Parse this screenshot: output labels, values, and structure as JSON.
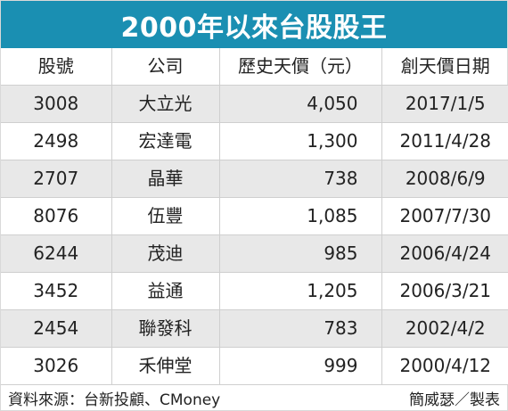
{
  "chart_data": {
    "type": "table",
    "title": "2000年以來台股股王",
    "columns": [
      "股號",
      "公司",
      "歷史天價（元）",
      "創天價日期"
    ],
    "rows": [
      {
        "code": "3008",
        "company": "大立光",
        "price": "4,050",
        "date": "2017/1/5"
      },
      {
        "code": "2498",
        "company": "宏達電",
        "price": "1,300",
        "date": "2011/4/28"
      },
      {
        "code": "2707",
        "company": "晶華",
        "price": "738",
        "date": "2008/6/9"
      },
      {
        "code": "8076",
        "company": "伍豐",
        "price": "1,085",
        "date": "2007/7/30"
      },
      {
        "code": "6244",
        "company": "茂迪",
        "price": "985",
        "date": "2006/4/24"
      },
      {
        "code": "3452",
        "company": "益通",
        "price": "1,205",
        "date": "2006/3/21"
      },
      {
        "code": "2454",
        "company": "聯發科",
        "price": "783",
        "date": "2002/4/2"
      },
      {
        "code": "3026",
        "company": "禾伸堂",
        "price": "999",
        "date": "2000/4/12"
      }
    ]
  },
  "footer": {
    "source": "資料來源：台新投顧、CMoney",
    "credit": "簡威瑟／製表"
  },
  "colors": {
    "title_bg": "#1a8fb2",
    "stripe": "#e8e8e8"
  }
}
